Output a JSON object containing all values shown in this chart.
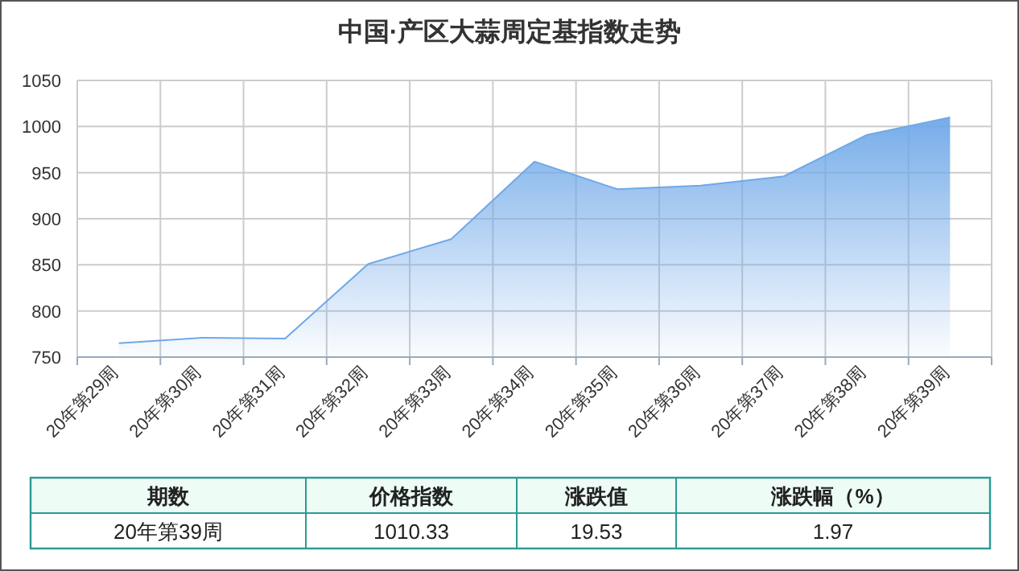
{
  "chart_data": {
    "type": "area",
    "title": "中国·产区大蒜周定基指数走势",
    "categories": [
      "20年第29周",
      "20年第30周",
      "20年第31周",
      "20年第32周",
      "20年第33周",
      "20年第34周",
      "20年第35周",
      "20年第36周",
      "20年第37周",
      "20年第38周",
      "20年第39周"
    ],
    "values": [
      765,
      771,
      770,
      851,
      878,
      962,
      932,
      936,
      946,
      991,
      1010
    ],
    "color": "#6fa8e8",
    "ylim": [
      750,
      1050
    ],
    "yticks": [
      750,
      800,
      850,
      900,
      950,
      1000,
      1050
    ],
    "grid": true,
    "annotations": [
      "期数",
      "价格指数",
      "涨跌值",
      "涨跌幅（%）",
      "20年第39周",
      "1010.33",
      "19.53",
      "1.97"
    ]
  }
}
